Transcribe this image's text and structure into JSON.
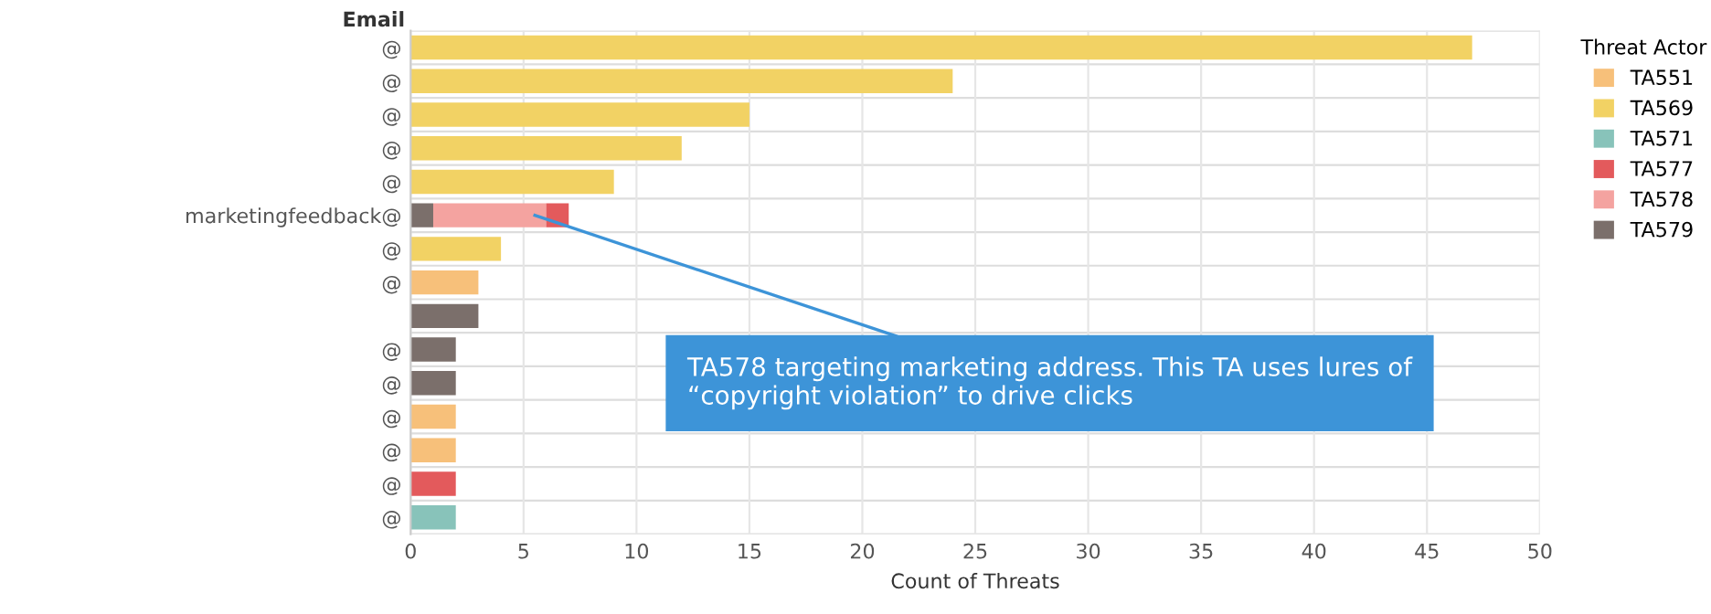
{
  "chart_data": {
    "type": "bar",
    "orientation": "horizontal",
    "stacked": true,
    "xlabel": "Count of Threats",
    "ylabel": "Email",
    "legend_title": "Threat Actor",
    "legend": "right",
    "grid": "x",
    "categories": [
      "@",
      "@",
      "@",
      "@",
      "@",
      "marketingfeedback@",
      "@",
      "@",
      null,
      "@",
      "@",
      "@",
      "@",
      "@",
      "@"
    ],
    "series": [
      {
        "name": "TA579",
        "color": "#7b6f6b",
        "values": [
          null,
          null,
          null,
          null,
          null,
          1,
          null,
          null,
          3,
          2,
          2,
          null,
          null,
          null,
          null
        ]
      },
      {
        "name": "TA578",
        "color": "#f4a3a0",
        "values": [
          null,
          null,
          null,
          null,
          null,
          5,
          null,
          null,
          null,
          null,
          null,
          null,
          null,
          null,
          null
        ]
      },
      {
        "name": "TA577",
        "color": "#e35a5c",
        "values": [
          null,
          null,
          null,
          null,
          null,
          1,
          null,
          null,
          null,
          null,
          null,
          null,
          null,
          2,
          null
        ]
      },
      {
        "name": "TA551",
        "color": "#f7c07a",
        "values": [
          null,
          null,
          null,
          null,
          null,
          null,
          null,
          3,
          null,
          null,
          null,
          2,
          2,
          null,
          null
        ]
      },
      {
        "name": "TA569",
        "color": "#f2d264",
        "values": [
          47,
          24,
          15,
          12,
          9,
          null,
          4,
          null,
          null,
          null,
          null,
          null,
          null,
          null,
          null
        ]
      },
      {
        "name": "TA571",
        "color": "#88c3ba",
        "values": [
          null,
          null,
          null,
          null,
          null,
          null,
          null,
          null,
          null,
          null,
          null,
          null,
          null,
          null,
          2
        ]
      }
    ],
    "xlim": [
      0,
      50
    ],
    "xticks": [
      0,
      5,
      10,
      15,
      20,
      25,
      30,
      35,
      40,
      45,
      50
    ],
    "annotations": [
      "TA578 targeting marketing address. This TA uses lures of “copyright violation” to drive clicks"
    ]
  }
}
